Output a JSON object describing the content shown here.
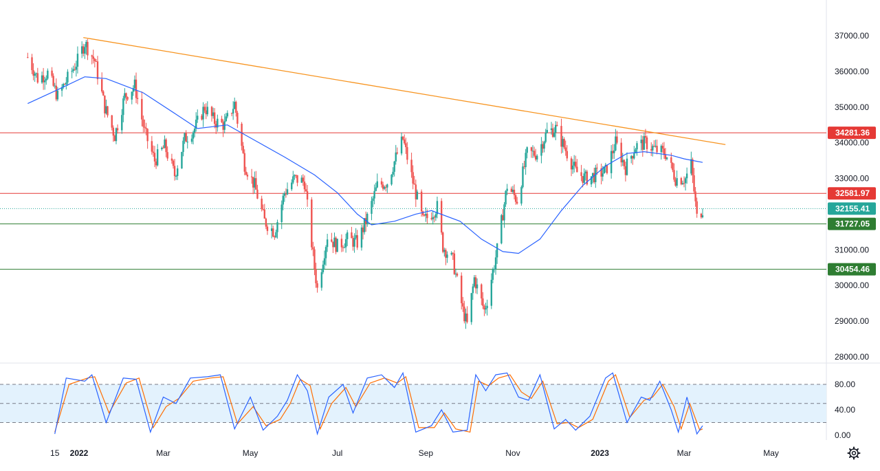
{
  "chart_data": [
    {
      "type": "candlestick",
      "title": "",
      "ylim": [
        27500,
        37700
      ],
      "y_ticks": [
        "37000.00",
        "36000.00",
        "35000.00",
        "34000.00",
        "33000.00",
        "31000.00",
        "30000.00",
        "29000.00",
        "28000.00"
      ],
      "x_ticks": [
        {
          "label": "15",
          "date": "2021-12-15",
          "bold": false
        },
        {
          "label": "2022",
          "date": "2022-01-01",
          "bold": true
        },
        {
          "label": "Mar",
          "date": "2022-03-01",
          "bold": false
        },
        {
          "label": "May",
          "date": "2022-05-01",
          "bold": false
        },
        {
          "label": "Jul",
          "date": "2022-07-01",
          "bold": false
        },
        {
          "label": "Sep",
          "date": "2022-09-01",
          "bold": false
        },
        {
          "label": "Nov",
          "date": "2022-11-01",
          "bold": false
        },
        {
          "label": "2023",
          "date": "2023-01-01",
          "bold": true
        },
        {
          "label": "Mar",
          "date": "2023-03-01",
          "bold": false
        },
        {
          "label": "May",
          "date": "2023-05-01",
          "bold": false
        }
      ],
      "close_series": [
        [
          "2021-11-26",
          36400
        ],
        [
          "2021-12-03",
          35800
        ],
        [
          "2021-12-10",
          35950
        ],
        [
          "2021-12-17",
          35300
        ],
        [
          "2021-12-24",
          35800
        ],
        [
          "2021-12-31",
          36300
        ],
        [
          "2022-01-05",
          36800
        ],
        [
          "2022-01-12",
          36300
        ],
        [
          "2022-01-19",
          35000
        ],
        [
          "2022-01-26",
          34200
        ],
        [
          "2022-02-02",
          35300
        ],
        [
          "2022-02-09",
          35600
        ],
        [
          "2022-02-16",
          34300
        ],
        [
          "2022-02-23",
          33500
        ],
        [
          "2022-03-02",
          33900
        ],
        [
          "2022-03-09",
          33100
        ],
        [
          "2022-03-16",
          34100
        ],
        [
          "2022-03-23",
          34400
        ],
        [
          "2022-03-30",
          35000
        ],
        [
          "2022-04-06",
          34600
        ],
        [
          "2022-04-13",
          34500
        ],
        [
          "2022-04-20",
          35100
        ],
        [
          "2022-04-27",
          33400
        ],
        [
          "2022-05-04",
          32800
        ],
        [
          "2022-05-11",
          31800
        ],
        [
          "2022-05-18",
          31500
        ],
        [
          "2022-05-25",
          32600
        ],
        [
          "2022-06-01",
          33000
        ],
        [
          "2022-06-08",
          32900
        ],
        [
          "2022-06-15",
          30500
        ],
        [
          "2022-06-17",
          29900
        ],
        [
          "2022-06-24",
          31400
        ],
        [
          "2022-07-01",
          31100
        ],
        [
          "2022-07-08",
          31300
        ],
        [
          "2022-07-15",
          31200
        ],
        [
          "2022-07-22",
          31900
        ],
        [
          "2022-07-29",
          32800
        ],
        [
          "2022-08-05",
          32900
        ],
        [
          "2022-08-12",
          33700
        ],
        [
          "2022-08-16",
          34100
        ],
        [
          "2022-08-23",
          32900
        ],
        [
          "2022-08-30",
          31800
        ],
        [
          "2022-09-02",
          31900
        ],
        [
          "2022-09-09",
          32200
        ],
        [
          "2022-09-13",
          31100
        ],
        [
          "2022-09-20",
          30700
        ],
        [
          "2022-09-27",
          29300
        ],
        [
          "2022-09-30",
          28900
        ],
        [
          "2022-10-05",
          30200
        ],
        [
          "2022-10-12",
          29300
        ],
        [
          "2022-10-14",
          29600
        ],
        [
          "2022-10-21",
          31000
        ],
        [
          "2022-10-28",
          32800
        ],
        [
          "2022-11-04",
          32400
        ],
        [
          "2022-11-11",
          33700
        ],
        [
          "2022-11-18",
          33700
        ],
        [
          "2022-11-25",
          34300
        ],
        [
          "2022-12-01",
          34400
        ],
        [
          "2022-12-08",
          33800
        ],
        [
          "2022-12-15",
          33200
        ],
        [
          "2022-12-22",
          33000
        ],
        [
          "2022-12-29",
          33100
        ],
        [
          "2023-01-05",
          33200
        ],
        [
          "2023-01-12",
          34000
        ],
        [
          "2023-01-19",
          33300
        ],
        [
          "2023-01-26",
          33900
        ],
        [
          "2023-02-02",
          34000
        ],
        [
          "2023-02-09",
          33800
        ],
        [
          "2023-02-16",
          33700
        ],
        [
          "2023-02-23",
          33000
        ],
        [
          "2023-03-02",
          33000
        ],
        [
          "2023-03-06",
          33400
        ],
        [
          "2023-03-10",
          31900
        ],
        [
          "2023-03-14",
          32155
        ]
      ],
      "ma_series": [
        [
          "2021-11-26",
          35100
        ],
        [
          "2021-12-15",
          35450
        ],
        [
          "2022-01-05",
          35850
        ],
        [
          "2022-01-20",
          35800
        ],
        [
          "2022-02-15",
          35400
        ],
        [
          "2022-03-10",
          34800
        ],
        [
          "2022-03-25",
          34400
        ],
        [
          "2022-04-15",
          34500
        ],
        [
          "2022-05-05",
          34050
        ],
        [
          "2022-05-25",
          33600
        ],
        [
          "2022-06-15",
          33100
        ],
        [
          "2022-07-01",
          32600
        ],
        [
          "2022-07-15",
          32000
        ],
        [
          "2022-07-25",
          31700
        ],
        [
          "2022-08-10",
          31800
        ],
        [
          "2022-08-25",
          32000
        ],
        [
          "2022-09-05",
          32100
        ],
        [
          "2022-09-25",
          31800
        ],
        [
          "2022-10-10",
          31300
        ],
        [
          "2022-10-25",
          30950
        ],
        [
          "2022-11-05",
          30900
        ],
        [
          "2022-11-20",
          31300
        ],
        [
          "2022-12-05",
          32100
        ],
        [
          "2022-12-20",
          32800
        ],
        [
          "2023-01-05",
          33350
        ],
        [
          "2023-01-20",
          33700
        ],
        [
          "2023-02-01",
          33750
        ],
        [
          "2023-02-20",
          33650
        ],
        [
          "2023-03-01",
          33550
        ],
        [
          "2023-03-14",
          33450
        ]
      ],
      "trendline": {
        "from": [
          "2022-01-04",
          36950
        ],
        "to": [
          "2023-03-30",
          33950
        ],
        "color": "#f7931e"
      },
      "horizontal_levels": [
        {
          "value": 34281.36,
          "label": "34281.36",
          "color": "#e53935"
        },
        {
          "value": 32581.97,
          "label": "32581.97",
          "color": "#e53935"
        },
        {
          "value": 31727.05,
          "label": "31727.05",
          "color": "#2e7d32"
        },
        {
          "value": 30454.46,
          "label": "30454.46",
          "color": "#2e7d32"
        }
      ],
      "last_price": {
        "value": 32155.41,
        "label": "32155.41",
        "color": "#26a69a"
      },
      "colors": {
        "up": "#26a69a",
        "down": "#ef5350",
        "ma": "#2962ff"
      },
      "grid": false
    },
    {
      "type": "line",
      "title": "",
      "ylim": [
        -5,
        100
      ],
      "y_ticks": [
        "80.00",
        "40.00",
        "0.00"
      ],
      "levels": [
        80,
        50,
        20
      ],
      "band": [
        20,
        80
      ],
      "k_series": [
        [
          "2021-12-15",
          2
        ],
        [
          "2021-12-23",
          90
        ],
        [
          "2022-01-05",
          85
        ],
        [
          "2022-01-10",
          95
        ],
        [
          "2022-01-20",
          20
        ],
        [
          "2022-02-01",
          90
        ],
        [
          "2022-02-10",
          88
        ],
        [
          "2022-02-20",
          5
        ],
        [
          "2022-03-01",
          60
        ],
        [
          "2022-03-10",
          50
        ],
        [
          "2022-03-20",
          90
        ],
        [
          "2022-04-01",
          92
        ],
        [
          "2022-04-10",
          95
        ],
        [
          "2022-04-20",
          10
        ],
        [
          "2022-05-01",
          60
        ],
        [
          "2022-05-10",
          8
        ],
        [
          "2022-05-20",
          30
        ],
        [
          "2022-05-27",
          55
        ],
        [
          "2022-06-03",
          95
        ],
        [
          "2022-06-10",
          70
        ],
        [
          "2022-06-17",
          2
        ],
        [
          "2022-06-25",
          60
        ],
        [
          "2022-07-05",
          80
        ],
        [
          "2022-07-12",
          35
        ],
        [
          "2022-07-22",
          90
        ],
        [
          "2022-08-01",
          95
        ],
        [
          "2022-08-10",
          75
        ],
        [
          "2022-08-16",
          98
        ],
        [
          "2022-08-25",
          5
        ],
        [
          "2022-09-05",
          15
        ],
        [
          "2022-09-12",
          40
        ],
        [
          "2022-09-20",
          5
        ],
        [
          "2022-09-30",
          8
        ],
        [
          "2022-10-06",
          95
        ],
        [
          "2022-10-13",
          70
        ],
        [
          "2022-10-20",
          95
        ],
        [
          "2022-10-28",
          98
        ],
        [
          "2022-11-05",
          60
        ],
        [
          "2022-11-12",
          55
        ],
        [
          "2022-11-20",
          95
        ],
        [
          "2022-11-30",
          10
        ],
        [
          "2022-12-08",
          25
        ],
        [
          "2022-12-15",
          8
        ],
        [
          "2022-12-25",
          30
        ],
        [
          "2023-01-05",
          90
        ],
        [
          "2023-01-10",
          98
        ],
        [
          "2023-01-20",
          20
        ],
        [
          "2023-01-30",
          60
        ],
        [
          "2023-02-05",
          55
        ],
        [
          "2023-02-12",
          85
        ],
        [
          "2023-02-20",
          40
        ],
        [
          "2023-02-25",
          5
        ],
        [
          "2023-03-03",
          60
        ],
        [
          "2023-03-10",
          2
        ],
        [
          "2023-03-14",
          15
        ]
      ],
      "d_series": [
        [
          "2021-12-15",
          5
        ],
        [
          "2021-12-25",
          80
        ],
        [
          "2022-01-07",
          90
        ],
        [
          "2022-01-12",
          92
        ],
        [
          "2022-01-22",
          35
        ],
        [
          "2022-02-03",
          82
        ],
        [
          "2022-02-12",
          90
        ],
        [
          "2022-02-22",
          12
        ],
        [
          "2022-03-03",
          45
        ],
        [
          "2022-03-12",
          58
        ],
        [
          "2022-03-22",
          85
        ],
        [
          "2022-04-03",
          90
        ],
        [
          "2022-04-12",
          92
        ],
        [
          "2022-04-22",
          18
        ],
        [
          "2022-05-03",
          45
        ],
        [
          "2022-05-12",
          15
        ],
        [
          "2022-05-22",
          25
        ],
        [
          "2022-05-29",
          50
        ],
        [
          "2022-06-05",
          88
        ],
        [
          "2022-06-12",
          78
        ],
        [
          "2022-06-19",
          10
        ],
        [
          "2022-06-27",
          50
        ],
        [
          "2022-07-07",
          75
        ],
        [
          "2022-07-14",
          45
        ],
        [
          "2022-07-24",
          82
        ],
        [
          "2022-08-03",
          90
        ],
        [
          "2022-08-12",
          82
        ],
        [
          "2022-08-18",
          92
        ],
        [
          "2022-08-27",
          12
        ],
        [
          "2022-09-07",
          12
        ],
        [
          "2022-09-14",
          35
        ],
        [
          "2022-09-22",
          10
        ],
        [
          "2022-10-02",
          5
        ],
        [
          "2022-10-08",
          85
        ],
        [
          "2022-10-15",
          78
        ],
        [
          "2022-10-22",
          90
        ],
        [
          "2022-10-30",
          95
        ],
        [
          "2022-11-07",
          68
        ],
        [
          "2022-11-14",
          58
        ],
        [
          "2022-11-22",
          85
        ],
        [
          "2022-12-02",
          18
        ],
        [
          "2022-12-10",
          20
        ],
        [
          "2022-12-17",
          12
        ],
        [
          "2022-12-27",
          25
        ],
        [
          "2023-01-07",
          85
        ],
        [
          "2023-01-12",
          95
        ],
        [
          "2023-01-22",
          28
        ],
        [
          "2023-02-01",
          55
        ],
        [
          "2023-02-07",
          60
        ],
        [
          "2023-02-14",
          80
        ],
        [
          "2023-02-22",
          45
        ],
        [
          "2023-02-27",
          10
        ],
        [
          "2023-03-05",
          50
        ],
        [
          "2023-03-12",
          8
        ],
        [
          "2023-03-14",
          10
        ]
      ],
      "colors": {
        "k": "#2962ff",
        "d": "#ff6d00",
        "band": "#e3f2fd",
        "levels": "#787b86"
      }
    }
  ]
}
